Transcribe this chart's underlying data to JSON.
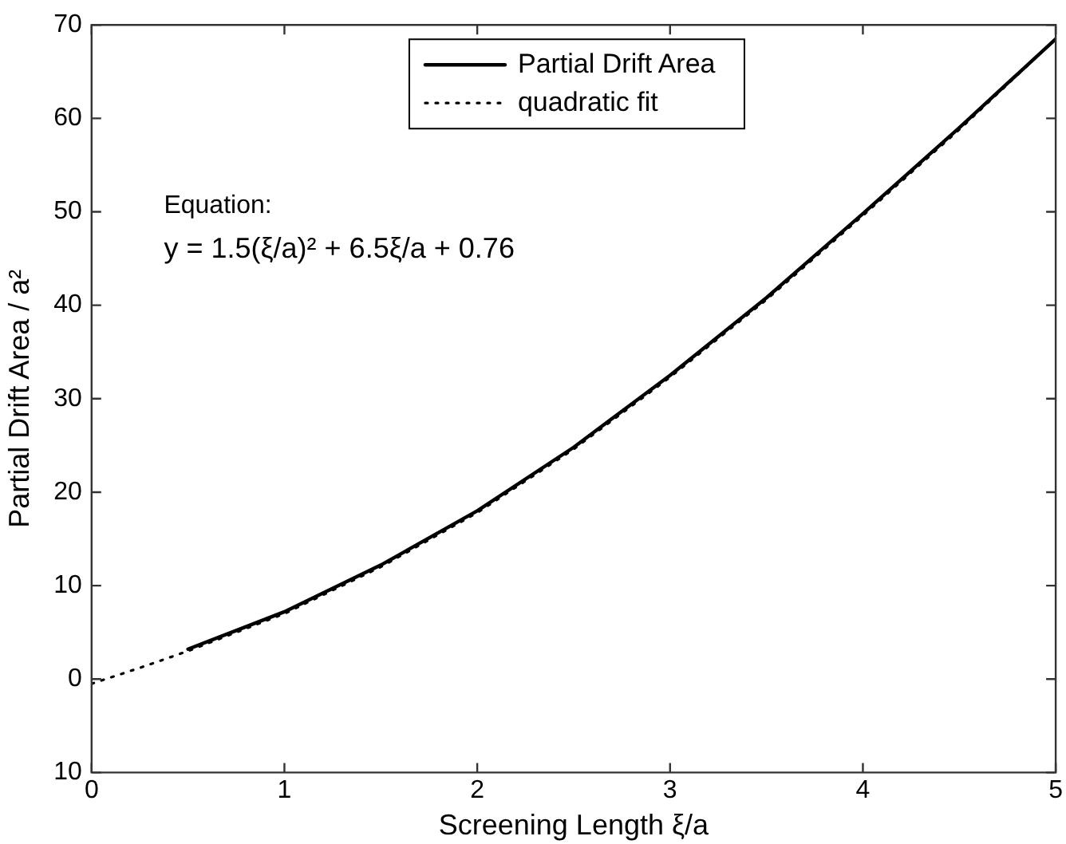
{
  "chart_data": {
    "type": "line",
    "xlabel": "Screening Length ξ/a",
    "ylabel": "Partial Drift Area / a²",
    "xlim": [
      0,
      5
    ],
    "xticks": [
      0,
      1,
      2,
      3,
      4,
      5
    ],
    "ylim": [
      -10,
      70
    ],
    "yticks": [
      {
        "value": -10,
        "label": "10"
      },
      0,
      10,
      20,
      30,
      40,
      50,
      60,
      70
    ],
    "grid": false,
    "legend": "top",
    "marker": "none",
    "annotations": [
      "Equation:",
      "y = 1.5(ξ/a)² + 6.5ξ/a + 0.76"
    ],
    "series": [
      {
        "name": "Partial Drift Area",
        "color": "#000000",
        "line_style": "solid",
        "x": [
          0.5,
          0.75,
          1,
          1.5,
          2,
          2.5,
          3,
          3.5,
          4,
          4.5,
          5
        ],
        "values": [
          3.2,
          5.2,
          7.2,
          12.2,
          18,
          24.8,
          32.5,
          40.8,
          49.8,
          59,
          68.5
        ]
      },
      {
        "name": "quadratic fit",
        "color": "#000000",
        "line_style": "dotted",
        "x": [
          0,
          0.25,
          0.5,
          0.75,
          1,
          1.5,
          2,
          2.5,
          3,
          3.5,
          4,
          4.5,
          5
        ],
        "values": [
          -0.5,
          1.2,
          3,
          5,
          7,
          12,
          17.8,
          24.6,
          32.3,
          40.6,
          49.6,
          58.8,
          68.5
        ]
      }
    ]
  }
}
